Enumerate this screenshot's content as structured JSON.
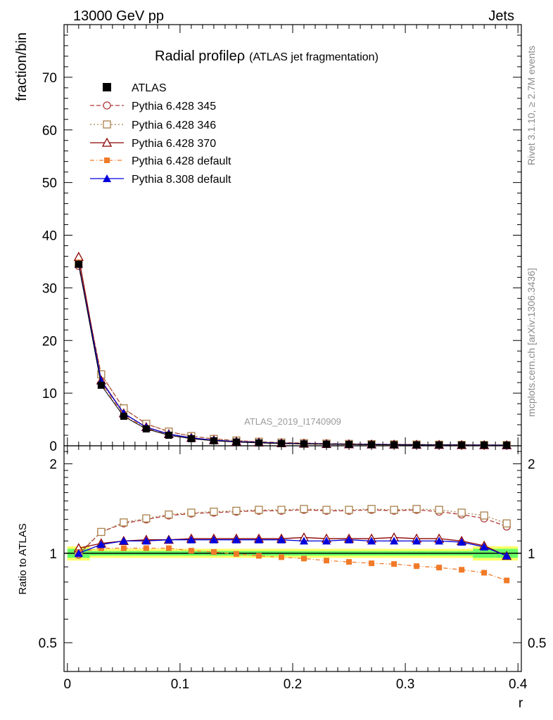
{
  "header": {
    "left": "13000 GeV pp",
    "right": "Jets"
  },
  "side": {
    "rivet": "Rivet 3.1.10, ≥ 2.7M events",
    "mcplots": "mcplots.cern.ch [arXiv:1306.3436]"
  },
  "title": {
    "main": "Radial profile",
    "rho": "ρ",
    "sub": "(ATLAS jet fragmentation)"
  },
  "watermark": "ATLAS_2019_I1740909",
  "chart_data": {
    "type": "line",
    "xlabel": "r",
    "ylabel_top": "fraction/bin",
    "ylabel_bottom": "Ratio to ATLAS",
    "xlim": [
      -0.003,
      0.403
    ],
    "ylim_top": [
      0,
      80
    ],
    "ylim_bottom": [
      0.4,
      2.3
    ],
    "ratio_log_scale": true,
    "x_ticks": [
      "0",
      "0.1",
      "0.2",
      "0.3",
      "0.4"
    ],
    "y_ticks_top": [
      "0",
      "10",
      "20",
      "30",
      "40",
      "50",
      "60",
      "70"
    ],
    "y_ticks_bottom": [
      "0.5",
      "1",
      "2"
    ],
    "x": [
      0.01,
      0.03,
      0.05,
      0.07,
      0.09,
      0.11,
      0.13,
      0.15,
      0.17,
      0.19,
      0.21,
      0.23,
      0.25,
      0.27,
      0.29,
      0.31,
      0.33,
      0.35,
      0.37,
      0.39
    ],
    "atlas": [
      34.5,
      11.5,
      5.6,
      3.2,
      2.0,
      1.35,
      0.95,
      0.72,
      0.55,
      0.44,
      0.36,
      0.3,
      0.26,
      0.22,
      0.19,
      0.17,
      0.15,
      0.13,
      0.12,
      0.11
    ],
    "series": [
      {
        "name": "Pythia 6.428 345",
        "color": "#b03a3a",
        "marker": "open-circle",
        "dash": "6,3",
        "ratio": [
          0.99,
          1.18,
          1.26,
          1.3,
          1.34,
          1.36,
          1.37,
          1.38,
          1.39,
          1.39,
          1.4,
          1.39,
          1.39,
          1.4,
          1.39,
          1.4,
          1.38,
          1.35,
          1.31,
          1.23
        ]
      },
      {
        "name": "Pythia 6.428 346",
        "color": "#a8804a",
        "marker": "open-square",
        "dash": "2,3",
        "ratio": [
          1.0,
          1.18,
          1.27,
          1.31,
          1.35,
          1.37,
          1.38,
          1.39,
          1.4,
          1.4,
          1.41,
          1.4,
          1.4,
          1.41,
          1.4,
          1.41,
          1.4,
          1.37,
          1.34,
          1.26
        ]
      },
      {
        "name": "Pythia 6.428 370",
        "color": "#8b0000",
        "marker": "open-triangle",
        "dash": "",
        "ratio": [
          1.04,
          1.08,
          1.1,
          1.11,
          1.11,
          1.12,
          1.12,
          1.12,
          1.12,
          1.12,
          1.13,
          1.12,
          1.12,
          1.12,
          1.13,
          1.12,
          1.12,
          1.1,
          1.06,
          0.98
        ]
      },
      {
        "name": "Pythia 6.428 default",
        "color": "#f07a28",
        "marker": "filled-square",
        "dash": "6,3,1,3",
        "ratio": [
          1.01,
          1.04,
          1.04,
          1.04,
          1.04,
          1.02,
          1.01,
          0.995,
          0.98,
          0.97,
          0.96,
          0.945,
          0.935,
          0.925,
          0.92,
          0.905,
          0.895,
          0.88,
          0.86,
          0.81
        ]
      },
      {
        "name": "Pythia 8.308 default",
        "color": "#0000dd",
        "marker": "filled-triangle",
        "dash": "",
        "ratio": [
          1.0,
          1.07,
          1.1,
          1.1,
          1.11,
          1.11,
          1.11,
          1.11,
          1.11,
          1.11,
          1.1,
          1.1,
          1.11,
          1.1,
          1.1,
          1.1,
          1.1,
          1.09,
          1.05,
          0.98
        ]
      }
    ],
    "legend": [
      {
        "label": "ATLAS"
      },
      {
        "label": "Pythia 6.428 345"
      },
      {
        "label": "Pythia 6.428 346"
      },
      {
        "label": "Pythia 6.428 370"
      },
      {
        "label": "Pythia 6.428 default"
      },
      {
        "label": "Pythia 8.308 default"
      }
    ],
    "legend_placement": "top-left",
    "band_colors": {
      "inner": "#66ff66",
      "outer": "#ffff66"
    }
  }
}
